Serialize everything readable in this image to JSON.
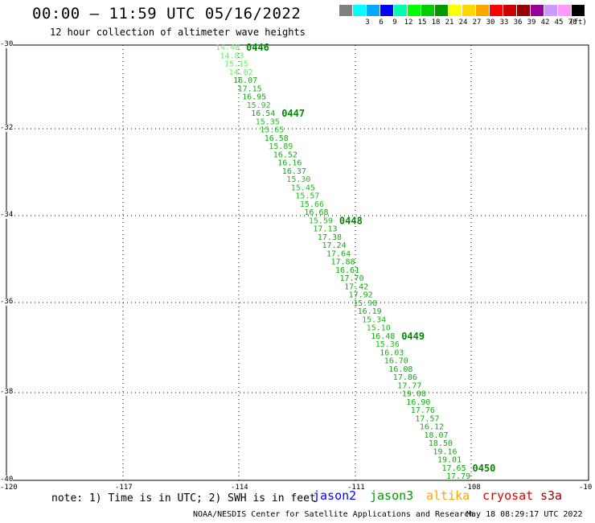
{
  "header": {
    "title": "00:00 – 11:59 UTC 05/16/2022",
    "subtitle": "12 hour collection of altimeter wave heights"
  },
  "legend": {
    "unit": "(ft)",
    "swatches": [
      {
        "color": "#808080",
        "label": ""
      },
      {
        "color": "#00ffff",
        "label": "3"
      },
      {
        "color": "#00aaff",
        "label": "6"
      },
      {
        "color": "#0000ff",
        "label": "9"
      },
      {
        "color": "#00ffaa",
        "label": "12"
      },
      {
        "color": "#00ff00",
        "label": "15"
      },
      {
        "color": "#00cc00",
        "label": "18"
      },
      {
        "color": "#009900",
        "label": "21"
      },
      {
        "color": "#ffff00",
        "label": "24"
      },
      {
        "color": "#ffd700",
        "label": "27"
      },
      {
        "color": "#ffa500",
        "label": "30"
      },
      {
        "color": "#ff0000",
        "label": "33"
      },
      {
        "color": "#cc0000",
        "label": "36"
      },
      {
        "color": "#990000",
        "label": "39"
      },
      {
        "color": "#990099",
        "label": "42"
      },
      {
        "color": "#cc99ff",
        "label": "45"
      },
      {
        "color": "#ff99ff",
        "label": "70"
      },
      {
        "color": "#000000",
        "label": ""
      }
    ]
  },
  "axes": {
    "lat_ticks": [
      "-30",
      "-32",
      "-34",
      "-36",
      "-38",
      "-40"
    ],
    "lon_ticks": [
      "-120",
      "-117",
      "-114",
      "-111",
      "-108",
      "-10"
    ]
  },
  "track": {
    "times": [
      {
        "label": "0446",
        "index": 0
      },
      {
        "label": "0447",
        "index": 8
      },
      {
        "label": "0448",
        "index": 21
      },
      {
        "label": "0449",
        "index": 35
      },
      {
        "label": "0450",
        "index": 51
      }
    ],
    "values": [
      "14.48",
      "14.83",
      "15.15",
      "14.02",
      "16.07",
      "17.15",
      "16.95",
      "15.92",
      "16.54",
      "15.35",
      "15.65",
      "16.58",
      "15.89",
      "16.52",
      "16.16",
      "16.37",
      "15.30",
      "15.45",
      "15.57",
      "15.66",
      "16.68",
      "15.59",
      "17.13",
      "17.38",
      "17.24",
      "17.64",
      "17.88",
      "16.61",
      "17.70",
      "17.42",
      "17.92",
      "15.98",
      "16.19",
      "15.34",
      "15.10",
      "16.48",
      "15.36",
      "16.03",
      "16.70",
      "16.08",
      "17.86",
      "17.77",
      "19.08",
      "16.90",
      "17.76",
      "17.57",
      "16.12",
      "18.07",
      "18.50",
      "19.16",
      "19.01",
      "17.65",
      "17.79"
    ],
    "colors": {
      "low": "#66ee66",
      "mid": "#22bb22",
      "high": "#11aa11",
      "label": "#008800"
    }
  },
  "footer": {
    "note": "note: 1) Time is in UTC; 2) SWH is in feet",
    "satellites": [
      {
        "name": "jason2",
        "color": "#0000ff"
      },
      {
        "name": "jason3",
        "color": "#009900"
      },
      {
        "name": "altika",
        "color": "#ffa500"
      },
      {
        "name": "cryosat",
        "color": "#dd0000"
      },
      {
        "name": "s3a",
        "color": "#990000"
      }
    ],
    "credit": "NOAA/NESDIS Center for Satellite Applications and Research",
    "timestamp": "May 18 08:29:17 UTC 2022"
  }
}
